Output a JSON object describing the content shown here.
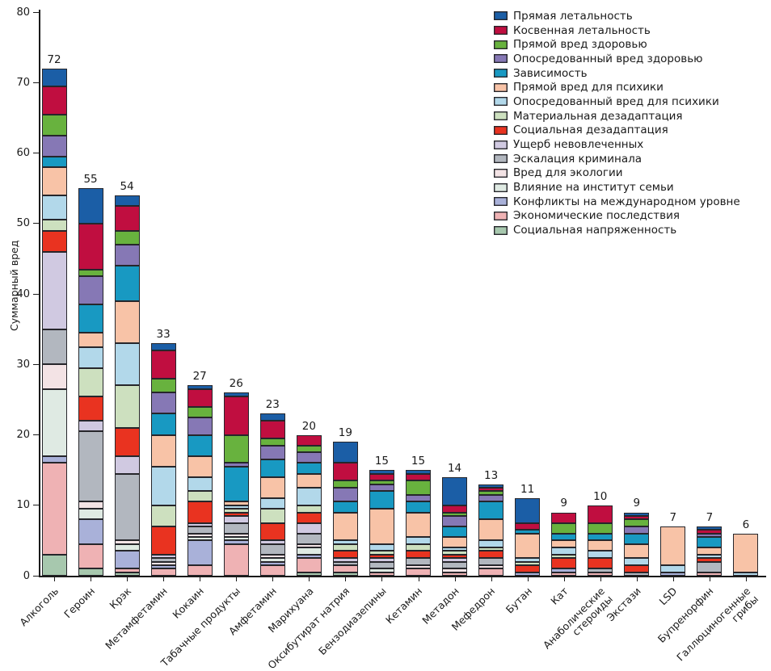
{
  "chart_data": {
    "type": "bar",
    "subtype": "stacked-vertical",
    "title": "",
    "ylabel": "Суммарный вред",
    "xlabel": "",
    "ylim": [
      0,
      80
    ],
    "ytick_step": 10,
    "yticks": [
      0,
      10,
      20,
      30,
      40,
      50,
      60,
      70,
      80
    ],
    "grid": false,
    "legend_position": "top-right",
    "categories": [
      "Алкоголь",
      "Героин",
      "Крэк",
      "Метамфетамин",
      "Кокаин",
      "Табачные продукты",
      "Амфетамин",
      "Марихуана",
      "Оксибутират натрия",
      "Бензодиазепины",
      "Кетамин",
      "Метадон",
      "Мефедрон",
      "Бутан",
      "Кат",
      "Анаболические\nстероиды",
      "Экстази",
      "LSD",
      "Бупренорфин",
      "Галлюциногенные\nгрибы"
    ],
    "totals": [
      72,
      55,
      54,
      33,
      27,
      26,
      23,
      20,
      19,
      15,
      15,
      14,
      13,
      11,
      9,
      10,
      9,
      7,
      7,
      6
    ],
    "series": [
      {
        "name": "Прямая летальность",
        "color": "#1b5ea6",
        "values": [
          2.5,
          5,
          1.5,
          1,
          0.5,
          0.5,
          1,
          0,
          3,
          0.5,
          0.5,
          4,
          0.5,
          3.5,
          0,
          0,
          0.5,
          0,
          0.5,
          0
        ]
      },
      {
        "name": "Косвенная летальность",
        "color": "#c00e40",
        "values": [
          4,
          6.5,
          3.5,
          4,
          2.5,
          5.5,
          2.5,
          1.5,
          2.5,
          1,
          1,
          1,
          0.5,
          1,
          1.5,
          2.5,
          0.5,
          0,
          0.5,
          0
        ]
      },
      {
        "name": "Прямой вред здоровью",
        "color": "#68b23e",
        "values": [
          3,
          1,
          2,
          2,
          1.5,
          4,
          1,
          1,
          1,
          0.5,
          2,
          0.5,
          0.5,
          0,
          1.5,
          1.5,
          1,
          0,
          0,
          0
        ]
      },
      {
        "name": "Опосредованный вред здоровью",
        "color": "#8678b5",
        "values": [
          3,
          4,
          3,
          3,
          2.5,
          0.5,
          2,
          1.5,
          2,
          1,
          1,
          1.5,
          1,
          0,
          0,
          0,
          1,
          0,
          0.5,
          0
        ]
      },
      {
        "name": "Зависимость",
        "color": "#1899c2",
        "values": [
          1.5,
          4,
          5,
          3,
          3,
          5,
          2.5,
          1.5,
          1.5,
          2.5,
          1.5,
          1.5,
          2.5,
          0.5,
          1,
          1,
          1.5,
          0,
          1.5,
          0
        ]
      },
      {
        "name": "Прямой вред для психики",
        "color": "#f8c3a7",
        "values": [
          4,
          2,
          6,
          4.5,
          3,
          0.5,
          3,
          2,
          4,
          5,
          3.5,
          1.5,
          3,
          3.5,
          1,
          1.5,
          2,
          5.5,
          1,
          5.5
        ]
      },
      {
        "name": "Опосредованный вред для психики",
        "color": "#b2d8ea",
        "values": [
          3.5,
          3,
          6,
          5.5,
          2,
          0.5,
          1.5,
          2.5,
          0.5,
          1,
          1,
          0.5,
          1,
          0.5,
          1,
          1,
          1,
          1,
          0.5,
          0.5
        ]
      },
      {
        "name": "Материальная дезадаптация",
        "color": "#cde0bf",
        "values": [
          1.5,
          4,
          6,
          3,
          1.5,
          0.5,
          2,
          1,
          1,
          0.5,
          1,
          0.5,
          0.5,
          0.5,
          0.5,
          0,
          0,
          0,
          0,
          0
        ]
      },
      {
        "name": "Социальная дезадаптация",
        "color": "#e93320",
        "values": [
          3,
          3.5,
          4,
          4,
          3,
          0.5,
          2.5,
          1.5,
          1,
          0.5,
          1,
          0.5,
          1,
          1,
          1.5,
          1.5,
          1,
          0,
          0.5,
          0
        ]
      },
      {
        "name": "Ущерб невовлеченных",
        "color": "#d0c9e1",
        "values": [
          11,
          1.5,
          2.5,
          0.5,
          0.5,
          1,
          0.5,
          1.5,
          0.5,
          0.5,
          0,
          0.5,
          0,
          0,
          0,
          0,
          0,
          0,
          0,
          0
        ]
      },
      {
        "name": "Эскалация криминала",
        "color": "#b2b7bf",
        "values": [
          5,
          10,
          9.5,
          0.5,
          1,
          1.5,
          1.5,
          1.5,
          0.5,
          1,
          1,
          1,
          1,
          0,
          0,
          0.5,
          0.5,
          0,
          1.5,
          0
        ]
      },
      {
        "name": "Вред для экологии",
        "color": "#f3e3e5",
        "values": [
          3.5,
          1,
          0.5,
          0.5,
          0.5,
          0.5,
          0.5,
          0.5,
          0,
          0,
          0.5,
          0.5,
          0.5,
          0,
          0,
          0,
          0,
          0,
          0,
          0
        ]
      },
      {
        "name": "Влияние на институт семьи",
        "color": "#dfeae3",
        "values": [
          9.5,
          1.5,
          1,
          0,
          0.5,
          0.5,
          0.5,
          1,
          0,
          0.5,
          0,
          0,
          0,
          0,
          0,
          0,
          0,
          0,
          0,
          0
        ]
      },
      {
        "name": "Конфликты на международном уровне",
        "color": "#a9b1d9",
        "values": [
          1,
          3.5,
          2.5,
          0.5,
          3.5,
          0.5,
          0.5,
          0.5,
          0,
          0,
          0,
          0,
          0,
          0.5,
          0.5,
          0,
          0,
          0.5,
          0,
          0
        ]
      },
      {
        "name": "Экономические последствия",
        "color": "#efb2b4",
        "values": [
          13,
          3.5,
          0.5,
          1,
          1.5,
          4.5,
          1.5,
          2,
          1,
          0.5,
          1,
          0.5,
          1,
          0,
          0.5,
          0.5,
          0,
          0,
          0.5,
          0
        ]
      },
      {
        "name": "Социальная напряженность",
        "color": "#a7c8ae",
        "values": [
          3,
          1,
          0.5,
          0,
          0,
          0,
          0,
          0.5,
          0.5,
          0,
          0,
          0,
          0,
          0,
          0,
          0,
          0,
          0,
          0,
          0
        ]
      }
    ]
  },
  "layout_text": {
    "ylabel": "Суммарный вред"
  }
}
